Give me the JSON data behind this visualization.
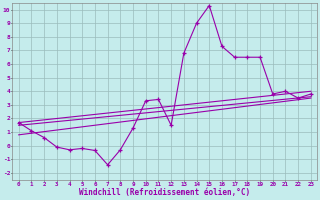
{
  "xlabel": "Windchill (Refroidissement éolien,°C)",
  "bg_color": "#c5ecec",
  "grid_color": "#9bbcbc",
  "line_color": "#9900aa",
  "xlim": [
    -0.5,
    23.5
  ],
  "ylim": [
    -2.5,
    10.5
  ],
  "xticks": [
    0,
    1,
    2,
    3,
    4,
    5,
    6,
    7,
    8,
    9,
    10,
    11,
    12,
    13,
    14,
    15,
    16,
    17,
    18,
    19,
    20,
    21,
    22,
    23
  ],
  "yticks": [
    -2,
    -1,
    0,
    1,
    2,
    3,
    4,
    5,
    6,
    7,
    8,
    9,
    10
  ],
  "line1_x": [
    0,
    1,
    2,
    3,
    4,
    5,
    6,
    7,
    8,
    9,
    10,
    11,
    12,
    13,
    14,
    15,
    16,
    17,
    18,
    19,
    20,
    21,
    22,
    23
  ],
  "line1_y": [
    1.7,
    1.1,
    0.6,
    -0.1,
    -0.3,
    -0.2,
    -0.35,
    -1.4,
    -0.3,
    1.3,
    3.3,
    3.4,
    1.5,
    6.8,
    9.0,
    10.3,
    7.3,
    6.5,
    6.5,
    6.5,
    3.8,
    4.0,
    3.5,
    3.8
  ],
  "line2_x": [
    0,
    23
  ],
  "line2_y": [
    1.7,
    4.0
  ],
  "line3_x": [
    0,
    23
  ],
  "line3_y": [
    1.5,
    3.6
  ],
  "line4_x": [
    0,
    23
  ],
  "line4_y": [
    0.8,
    3.5
  ]
}
